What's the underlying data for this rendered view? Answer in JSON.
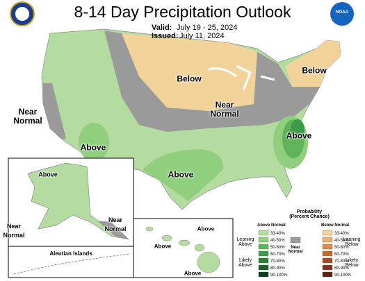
{
  "header": {
    "title": "8-14 Day Precipitation Outlook",
    "valid_label": "Valid:",
    "valid": "July 19 - 25, 2024",
    "issued_label": "Issued:",
    "issued": "July 11, 2024",
    "logo": "NOAA"
  },
  "map_labels": [
    "Below",
    "Below",
    "Near\nNormal",
    "Near\nNormal",
    "Above",
    "Above",
    "Above",
    "Above",
    "Near\nNormal",
    "Near\nNormal",
    "Above",
    "Above",
    "Above"
  ],
  "inset_label": "Aleutian Islands",
  "legend": {
    "title": "Probability\n(Percent Chance)",
    "above_heading": "Above Normal",
    "below_heading": "Below Normal",
    "near": "Near\nNormal",
    "near_color": "#9a9a9a",
    "leaning_above": "Leaning\nAbove",
    "likely_above": "Likely\nAbove",
    "leaning_below": "Leaning\nBelow",
    "likely_below": "Likely\nBelow",
    "above": [
      {
        "label": "33-40%",
        "color": "#b4dca0"
      },
      {
        "label": "40-50%",
        "color": "#8fcf7e"
      },
      {
        "label": "50-60%",
        "color": "#5fb45a"
      },
      {
        "label": "60-70%",
        "color": "#3c9b46"
      },
      {
        "label": "70-80%",
        "color": "#2a7d38"
      },
      {
        "label": "80-90%",
        "color": "#1e5f2a"
      },
      {
        "label": "90-100%",
        "color": "#0f3c18"
      }
    ],
    "below": [
      {
        "label": "33-40%",
        "color": "#f2d49a"
      },
      {
        "label": "40-50%",
        "color": "#e6b470"
      },
      {
        "label": "50-60%",
        "color": "#d88c4a"
      },
      {
        "label": "60-70%",
        "color": "#c06a32"
      },
      {
        "label": "70-80%",
        "color": "#a04c28"
      },
      {
        "label": "80-90%",
        "color": "#7c3420"
      },
      {
        "label": "90-100%",
        "color": "#5a2010"
      }
    ]
  }
}
